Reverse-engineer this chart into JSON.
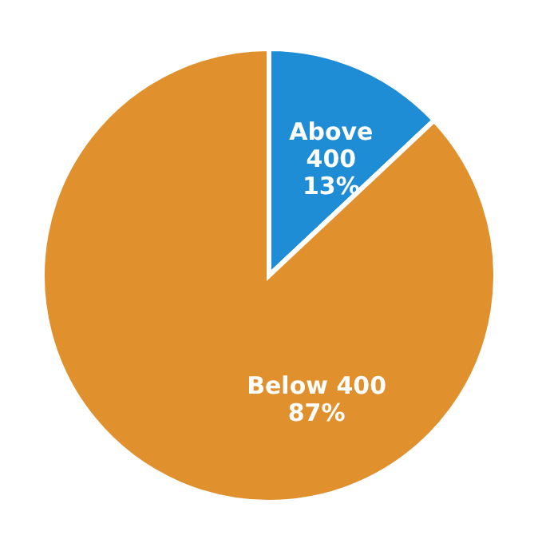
{
  "chart_data": {
    "type": "pie",
    "categories": [
      "Above 400",
      "Below 400"
    ],
    "values": [
      13,
      87
    ],
    "colors": [
      "#1f8dd6",
      "#e0912d"
    ],
    "value_labels": [
      "13%",
      "87%"
    ]
  }
}
